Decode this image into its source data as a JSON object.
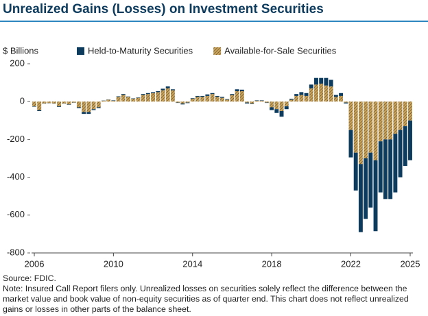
{
  "chart_data": {
    "type": "bar",
    "title": "Unrealized Gains (Losses) on Investment Securities",
    "y_label": "$ Billions",
    "source": "Source: FDIC.",
    "note": "Note: Insured Call Report filers only. Unrealized losses on securities solely reflect the difference between the market value and book value of non-equity securities as of quarter end. This chart does not reflect unrealized gains or losses in other parts of the balance sheet.",
    "stacked": true,
    "grid": false,
    "x": [
      2006,
      2006.25,
      2006.5,
      2006.75,
      2007,
      2007.25,
      2007.5,
      2007.75,
      2008,
      2008.25,
      2008.5,
      2008.75,
      2009,
      2009.25,
      2009.5,
      2009.75,
      2010,
      2010.25,
      2010.5,
      2010.75,
      2011,
      2011.25,
      2011.5,
      2011.75,
      2012,
      2012.25,
      2012.5,
      2012.75,
      2013,
      2013.25,
      2013.5,
      2013.75,
      2014,
      2014.25,
      2014.5,
      2014.75,
      2015,
      2015.25,
      2015.5,
      2015.75,
      2016,
      2016.25,
      2016.5,
      2016.75,
      2017,
      2017.25,
      2017.5,
      2017.75,
      2018,
      2018.25,
      2018.5,
      2018.75,
      2019,
      2019.25,
      2019.5,
      2019.75,
      2020,
      2020.25,
      2020.5,
      2020.75,
      2021,
      2021.25,
      2021.5,
      2021.75,
      2022,
      2022.25,
      2022.5,
      2022.75,
      2023,
      2023.25,
      2023.5,
      2023.75,
      2024,
      2024.25,
      2024.5,
      2024.75,
      2025
    ],
    "series": [
      {
        "name": "Held-to-Maturity Securities",
        "color": "#0d3b5e",
        "pattern": "solid",
        "values": [
          -2,
          -5,
          -1,
          -1,
          -1,
          -3,
          -1,
          -2,
          -1,
          -5,
          -10,
          -10,
          -5,
          -5,
          1,
          1,
          2,
          3,
          5,
          2,
          2,
          2,
          5,
          5,
          5,
          5,
          8,
          10,
          5,
          -2,
          -5,
          -3,
          3,
          5,
          5,
          8,
          5,
          5,
          5,
          3,
          5,
          10,
          8,
          -5,
          -3,
          2,
          2,
          -2,
          -15,
          -20,
          -30,
          -15,
          5,
          10,
          15,
          15,
          20,
          35,
          30,
          40,
          35,
          10,
          15,
          -5,
          -145,
          -200,
          -360,
          -320,
          -290,
          -375,
          -270,
          -315,
          -315,
          -310,
          -250,
          -210,
          -210
        ]
      },
      {
        "name": "Available-for-Sale Securities",
        "color": "#c9a35b",
        "pattern": "hatched",
        "values": [
          -25,
          -45,
          -10,
          -8,
          -10,
          -25,
          -10,
          -15,
          -5,
          -30,
          -55,
          -55,
          -40,
          -30,
          5,
          10,
          5,
          25,
          35,
          25,
          15,
          20,
          35,
          40,
          45,
          50,
          60,
          70,
          60,
          -5,
          -10,
          -5,
          15,
          25,
          25,
          30,
          40,
          25,
          20,
          10,
          35,
          55,
          55,
          -5,
          -10,
          5,
          5,
          -5,
          -30,
          -40,
          -50,
          -25,
          10,
          30,
          35,
          30,
          70,
          90,
          95,
          85,
          80,
          25,
          30,
          -5,
          -150,
          -270,
          -330,
          -300,
          -270,
          -310,
          -210,
          -200,
          -200,
          -170,
          -150,
          -130,
          -100
        ]
      }
    ],
    "xlim": [
      2006,
      2025
    ],
    "xticks": [
      2006,
      2010,
      2014,
      2018,
      2022,
      2025
    ],
    "ylim": [
      -800,
      200
    ],
    "yticks": [
      200,
      0,
      -200,
      -400,
      -600,
      -800
    ]
  }
}
